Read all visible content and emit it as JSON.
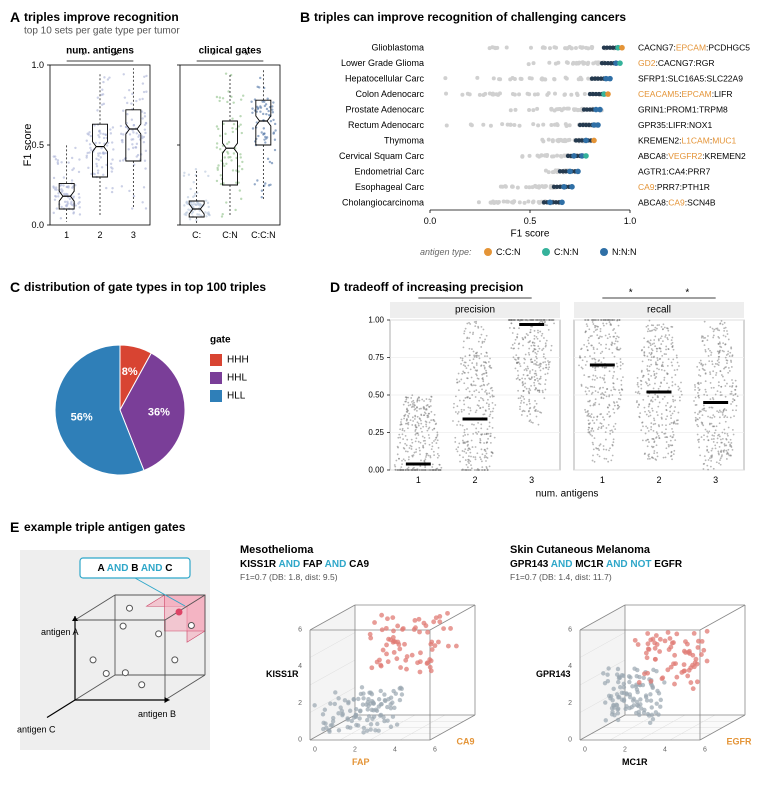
{
  "panelA": {
    "label": "A",
    "title": "triples improve recognition",
    "subtitle": "top 10 sets per gate type per tumor",
    "left": {
      "title": "num. antigens",
      "categories": [
        "1",
        "2",
        "3"
      ],
      "point_color": "#a9b1d5",
      "box_stroke": "#000000",
      "boxes": [
        {
          "q1": 0.1,
          "med": 0.18,
          "q3": 0.26,
          "lo": 0.02,
          "hi": 0.5
        },
        {
          "q1": 0.3,
          "med": 0.49,
          "q3": 0.63,
          "lo": 0.05,
          "hi": 0.95
        },
        {
          "q1": 0.4,
          "med": 0.6,
          "q3": 0.72,
          "lo": 0.1,
          "hi": 0.98
        }
      ],
      "n_points": 80
    },
    "right": {
      "title": "clinical gates",
      "categories": [
        "C:",
        "C:N",
        "C:C:N"
      ],
      "point_colors": [
        "#b6c5da",
        "#8dbf87",
        "#4f73a5"
      ],
      "box_stroke": "#000000",
      "boxes": [
        {
          "q1": 0.05,
          "med": 0.1,
          "q3": 0.15,
          "lo": 0.01,
          "hi": 0.35
        },
        {
          "q1": 0.25,
          "med": 0.48,
          "q3": 0.65,
          "lo": 0.05,
          "hi": 0.95
        },
        {
          "q1": 0.5,
          "med": 0.65,
          "q3": 0.78,
          "lo": 0.15,
          "hi": 0.98
        }
      ],
      "n_points": 70
    },
    "ylabel": "F1 score",
    "ylim": [
      0,
      1
    ],
    "yticks": [
      0.0,
      0.5,
      1.0
    ],
    "sig_marker": "*"
  },
  "panelB": {
    "label": "B",
    "title": "triples can improve recognition of challenging cancers",
    "xlabel": "F1 score",
    "xlim": [
      0,
      1
    ],
    "xticks": [
      0.0,
      0.5,
      1.0
    ],
    "legend_title": "antigen type:",
    "legend": [
      {
        "label": "C:C:N",
        "color": "#e49437"
      },
      {
        "label": "C:N:N",
        "color": "#35b29b"
      },
      {
        "label": "N:N:N",
        "color": "#2f6fa6"
      }
    ],
    "grey": "#d0d0d0",
    "rows": [
      {
        "name": "Glioblastoma",
        "lo": 0.22,
        "hi": 0.96,
        "genes": [
          "CACNG7",
          "EPCAM",
          "PCDHGC5"
        ],
        "ctypes": [
          0,
          1,
          0
        ],
        "dots": [
          {
            "x": 0.94,
            "c": "#35b29b"
          },
          {
            "x": 0.96,
            "c": "#e49437"
          }
        ]
      },
      {
        "name": "Lower Grade Glioma",
        "lo": 0.49,
        "hi": 0.95,
        "genes": [
          "GD2",
          "CACNG7",
          "RGR"
        ],
        "ctypes": [
          1,
          0,
          0
        ],
        "dots": [
          {
            "x": 0.93,
            "c": "#2f6fa6"
          },
          {
            "x": 0.95,
            "c": "#35b29b"
          }
        ]
      },
      {
        "name": "Hepatocellular Carc",
        "lo": 0.05,
        "hi": 0.9,
        "genes": [
          "SFRP1",
          "SLC16A5",
          "SLC22A9"
        ],
        "ctypes": [
          0,
          0,
          0
        ],
        "dots": [
          {
            "x": 0.88,
            "c": "#2f6fa6"
          },
          {
            "x": 0.9,
            "c": "#2f6fa6"
          }
        ]
      },
      {
        "name": "Colon Adenocarc",
        "lo": 0.05,
        "hi": 0.89,
        "genes": [
          "CEACAM5",
          "EPCAM",
          "LIFR"
        ],
        "ctypes": [
          1,
          1,
          0
        ],
        "dots": [
          {
            "x": 0.87,
            "c": "#35b29b"
          },
          {
            "x": 0.89,
            "c": "#e49437"
          }
        ]
      },
      {
        "name": "Prostate Adenocarc",
        "lo": 0.4,
        "hi": 0.86,
        "genes": [
          "GRIN1",
          "PROM1",
          "TRPM8"
        ],
        "ctypes": [
          0,
          0,
          0
        ],
        "dots": [
          {
            "x": 0.85,
            "c": "#2f6fa6"
          },
          {
            "x": 0.83,
            "c": "#2f6fa6"
          }
        ]
      },
      {
        "name": "Rectum Adenocarc",
        "lo": 0.05,
        "hi": 0.84,
        "genes": [
          "GPR35",
          "LIFR",
          "NOX1"
        ],
        "ctypes": [
          0,
          0,
          0
        ],
        "dots": [
          {
            "x": 0.82,
            "c": "#2f6fa6"
          },
          {
            "x": 0.84,
            "c": "#2f6fa6"
          }
        ]
      },
      {
        "name": "Thymoma",
        "lo": 0.48,
        "hi": 0.82,
        "genes": [
          "KREMEN2",
          "L1CAM",
          "MUC1"
        ],
        "ctypes": [
          0,
          1,
          1
        ],
        "dots": [
          {
            "x": 0.78,
            "c": "#2f6fa6"
          },
          {
            "x": 0.82,
            "c": "#e49437"
          }
        ]
      },
      {
        "name": "Cervical Squam Carc",
        "lo": 0.4,
        "hi": 0.78,
        "genes": [
          "ABCA8",
          "VEGFR2",
          "KREMEN2"
        ],
        "ctypes": [
          0,
          1,
          0
        ],
        "dots": [
          {
            "x": 0.72,
            "c": "#2f6fa6"
          },
          {
            "x": 0.76,
            "c": "#2f6fa6"
          },
          {
            "x": 0.78,
            "c": "#35b29b"
          }
        ]
      },
      {
        "name": "Endometrial Carc",
        "lo": 0.55,
        "hi": 0.74,
        "genes": [
          "AGTR1",
          "CA4",
          "PRR7"
        ],
        "ctypes": [
          0,
          0,
          0
        ],
        "dots": [
          {
            "x": 0.7,
            "c": "#2f6fa6"
          },
          {
            "x": 0.74,
            "c": "#2f6fa6"
          }
        ]
      },
      {
        "name": "Esophageal Carc",
        "lo": 0.28,
        "hi": 0.71,
        "genes": [
          "CA9",
          "PRR7",
          "PTH1R"
        ],
        "ctypes": [
          1,
          0,
          0
        ],
        "dots": [
          {
            "x": 0.67,
            "c": "#2f6fa6"
          },
          {
            "x": 0.71,
            "c": "#2f6fa6"
          }
        ]
      },
      {
        "name": "Cholangiocarcinoma",
        "lo": 0.2,
        "hi": 0.66,
        "genes": [
          "ABCA8",
          "CA9",
          "SCN4B"
        ],
        "ctypes": [
          0,
          1,
          0
        ],
        "dots": [
          {
            "x": 0.6,
            "c": "#2f6fa6"
          },
          {
            "x": 0.66,
            "c": "#2f6fa6"
          }
        ]
      }
    ]
  },
  "panelC": {
    "label": "C",
    "title": "distribution of gate types in top 100 triples",
    "legend_title": "gate",
    "slices": [
      {
        "label": "HHH",
        "value": 8,
        "color": "#d84432",
        "text": "8%"
      },
      {
        "label": "HHL",
        "value": 36,
        "color": "#7a3e98",
        "text": "36%"
      },
      {
        "label": "HLL",
        "value": 56,
        "color": "#2f7fb8",
        "text": "56%"
      }
    ]
  },
  "panelD": {
    "label": "D",
    "title": "tradeoff of increasing precision",
    "facets": [
      "precision",
      "recall"
    ],
    "categories": [
      "1",
      "2",
      "3"
    ],
    "xlabel": "num. antigens",
    "ylim": [
      0,
      1
    ],
    "yticks": [
      0.0,
      0.25,
      0.5,
      0.75,
      1.0
    ],
    "point_color": "#7a7a7a",
    "medians_precision": [
      0.04,
      0.34,
      0.97
    ],
    "medians_recall": [
      0.7,
      0.52,
      0.45
    ],
    "spread_precision": [
      [
        0.0,
        0.5,
        350
      ],
      [
        0.05,
        1.0,
        350
      ],
      [
        0.3,
        1.0,
        350
      ]
    ],
    "spread_recall": [
      [
        0.05,
        1.0,
        350
      ],
      [
        0.05,
        1.0,
        350
      ],
      [
        0.05,
        1.0,
        350
      ]
    ],
    "sig_marker": "*"
  },
  "panelE": {
    "label": "E",
    "title": "example triple antigen gates",
    "schematic": {
      "box_color": "#eeeeee",
      "highlight_color": "#f5a6b8",
      "dot_color": "#7a7a7a",
      "logic_text_pre": "",
      "A": "A",
      "B": "B",
      "C": "C",
      "and_text": "AND",
      "and_color": "#2fa7c9",
      "x_axis": "antigen B",
      "y_axis": "antigen A",
      "z_axis": "antigen C"
    },
    "plots": [
      {
        "disease": "Mesothelioma",
        "genes": [
          "KISS1R",
          "FAP",
          "CA9"
        ],
        "ops": [
          "AND",
          "AND"
        ],
        "op_color": "#2fa7c9",
        "meta": "F1=0.7 (DB: 1.8, dist: 9.5)",
        "axis_labels": {
          "y": "KISS1R",
          "x": "FAP",
          "z": "CA9"
        },
        "x_color": "#e49437",
        "z_color": "#e49437",
        "y_color": "#000000",
        "cluster_pos": "top",
        "red": "#e07b74",
        "grey": "#9aa7b0",
        "ticks": [
          0,
          2,
          4,
          6,
          8,
          10
        ]
      },
      {
        "disease": "Skin Cutaneous Melanoma",
        "genes": [
          "GPR143",
          "MC1R",
          "EGFR"
        ],
        "ops": [
          "AND",
          "AND NOT"
        ],
        "op_color": "#2fa7c9",
        "meta": "F1=0.7 (DB: 1.4, dist: 11.7)",
        "axis_labels": {
          "y": "GPR143",
          "x": "MC1R",
          "z": "EGFR"
        },
        "x_color": "#000000",
        "z_color": "#e49437",
        "y_color": "#000000",
        "cluster_pos": "side",
        "red": "#e07b74",
        "grey": "#9aa7b0",
        "ticks": [
          0,
          2,
          4,
          6
        ]
      }
    ]
  }
}
